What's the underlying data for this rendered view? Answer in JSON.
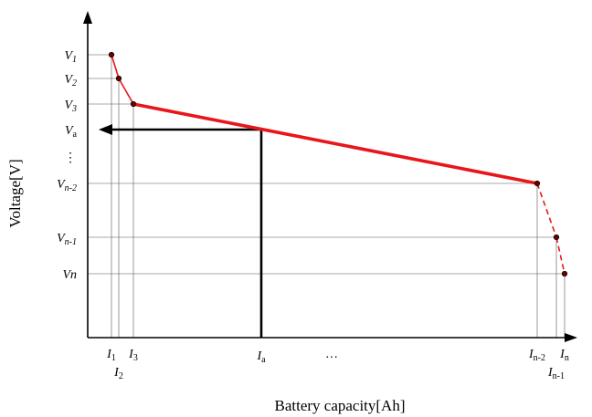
{
  "chart_data": {
    "type": "line",
    "xlabel": "Battery capacity[Ah]",
    "ylabel": "Voltage[V]",
    "y_ticks": [
      {
        "base": "V",
        "sub": "1",
        "italic_sub": true,
        "value": 1
      },
      {
        "base": "V",
        "sub": "2",
        "italic_sub": true,
        "value": 2
      },
      {
        "base": "V",
        "sub": "3",
        "italic_sub": true,
        "value": 3
      },
      {
        "base": "V",
        "sub": "a",
        "italic_sub": false,
        "value": "a"
      },
      {
        "base": "⋮",
        "sub": "",
        "italic_sub": false,
        "value": "ellipsis"
      },
      {
        "base": "V",
        "sub": "n-2",
        "italic_sub": true,
        "value": "n-2"
      },
      {
        "base": "V",
        "sub": "n-1",
        "italic_sub": true,
        "value": "n-1"
      },
      {
        "base": "Vn",
        "sub": "",
        "italic_sub": false,
        "value": "n"
      }
    ],
    "x_ticks": [
      {
        "base": "I",
        "sub": "1",
        "value": 1
      },
      {
        "base": "I",
        "sub": "2",
        "value": 2
      },
      {
        "base": "I",
        "sub": "3",
        "value": 3
      },
      {
        "base": "I",
        "sub": "a",
        "value": "a"
      },
      {
        "base": "…",
        "sub": "",
        "value": "ellipsis"
      },
      {
        "base": "I",
        "sub": "n-2",
        "value": "n-2"
      },
      {
        "base": "I",
        "sub": "n-1",
        "value": "n-1"
      },
      {
        "base": "I",
        "sub": "n",
        "value": "n"
      }
    ],
    "series": [
      {
        "points": [
          {
            "x": "I1",
            "y": "V1"
          },
          {
            "x": "I2",
            "y": "V2"
          },
          {
            "x": "I3",
            "y": "V3"
          },
          {
            "x": "In-2",
            "y": "Vn-2"
          },
          {
            "x": "In-1",
            "y": "Vn-1"
          },
          {
            "x": "In",
            "y": "Vn"
          }
        ],
        "color": "#e8161b",
        "segment_styles": [
          "solid",
          "solid",
          "solid-bold",
          "dashed",
          "dashed"
        ]
      }
    ],
    "lookup": {
      "x": "Ia",
      "y": "Va",
      "color": "#000000"
    },
    "grid": true
  }
}
